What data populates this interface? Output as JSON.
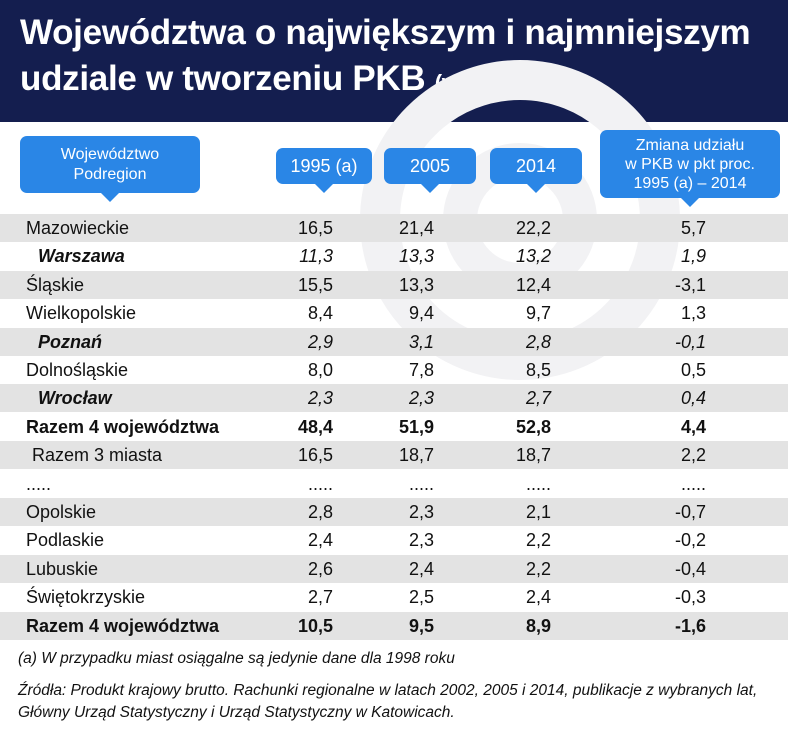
{
  "header": {
    "title": "Województwa o największym i najmniejszym udziale w tworzeniu PKB",
    "unit": "(w proc.)"
  },
  "colors": {
    "header_bg": "#141e4f",
    "pill": "#2a86e6",
    "shaded_row": "#e3e3e3"
  },
  "chart_data": {
    "type": "table",
    "columns": [
      "Województwo\nPodregion",
      "1995 (a)",
      "2005",
      "2014",
      "Zmiana udziału\nw PKB w pkt proc.\n1995 (a) – 2014"
    ],
    "rows": [
      {
        "name": "Mazowieckie",
        "values": [
          "16,5",
          "21,4",
          "22,2",
          "5,7"
        ],
        "style": "normal"
      },
      {
        "name": "Warszawa",
        "values": [
          "11,3",
          "13,3",
          "13,2",
          "1,9"
        ],
        "style": "italic"
      },
      {
        "name": "Śląskie",
        "values": [
          "15,5",
          "13,3",
          "12,4",
          "-3,1"
        ],
        "style": "normal"
      },
      {
        "name": "Wielkopolskie",
        "values": [
          "8,4",
          "9,4",
          "9,7",
          "1,3"
        ],
        "style": "normal"
      },
      {
        "name": "Poznań",
        "values": [
          "2,9",
          "3,1",
          "2,8",
          "-0,1"
        ],
        "style": "italic"
      },
      {
        "name": "Dolnośląskie",
        "values": [
          "8,0",
          "7,8",
          "8,5",
          "0,5"
        ],
        "style": "normal"
      },
      {
        "name": "Wrocław",
        "values": [
          "2,3",
          "2,3",
          "2,7",
          "0,4"
        ],
        "style": "italic"
      },
      {
        "name": "Razem 4 województwa",
        "values": [
          "48,4",
          "51,9",
          "52,8",
          "4,4"
        ],
        "style": "bold"
      },
      {
        "name": "Razem 3 miasta",
        "values": [
          "16,5",
          "18,7",
          "18,7",
          "2,2"
        ],
        "style": "indent"
      },
      {
        "name": ".....",
        "values": [
          ".....",
          ".....",
          ".....",
          "....."
        ],
        "style": "normal"
      },
      {
        "name": "Opolskie",
        "values": [
          "2,8",
          "2,3",
          "2,1",
          "-0,7"
        ],
        "style": "normal"
      },
      {
        "name": "Podlaskie",
        "values": [
          "2,4",
          "2,3",
          "2,2",
          "-0,2"
        ],
        "style": "normal"
      },
      {
        "name": "Lubuskie",
        "values": [
          "2,6",
          "2,4",
          "2,2",
          "-0,4"
        ],
        "style": "normal"
      },
      {
        "name": "Świętokrzyskie",
        "values": [
          "2,7",
          "2,5",
          "2,4",
          "-0,3"
        ],
        "style": "normal"
      },
      {
        "name": "Razem 4 województwa",
        "values": [
          "10,5",
          "9,5",
          "8,9",
          "-1,6"
        ],
        "style": "bold"
      }
    ]
  },
  "footnote": "(a) W przypadku miast osiągalne są jedynie dane dla 1998 roku",
  "source": "Źródła: Produkt krajowy brutto. Rachunki regionalne w latach 2002, 2005 i 2014, publikacje z wybranych lat, Główny Urząd Statystyczny i Urząd Statystyczny w Katowicach."
}
